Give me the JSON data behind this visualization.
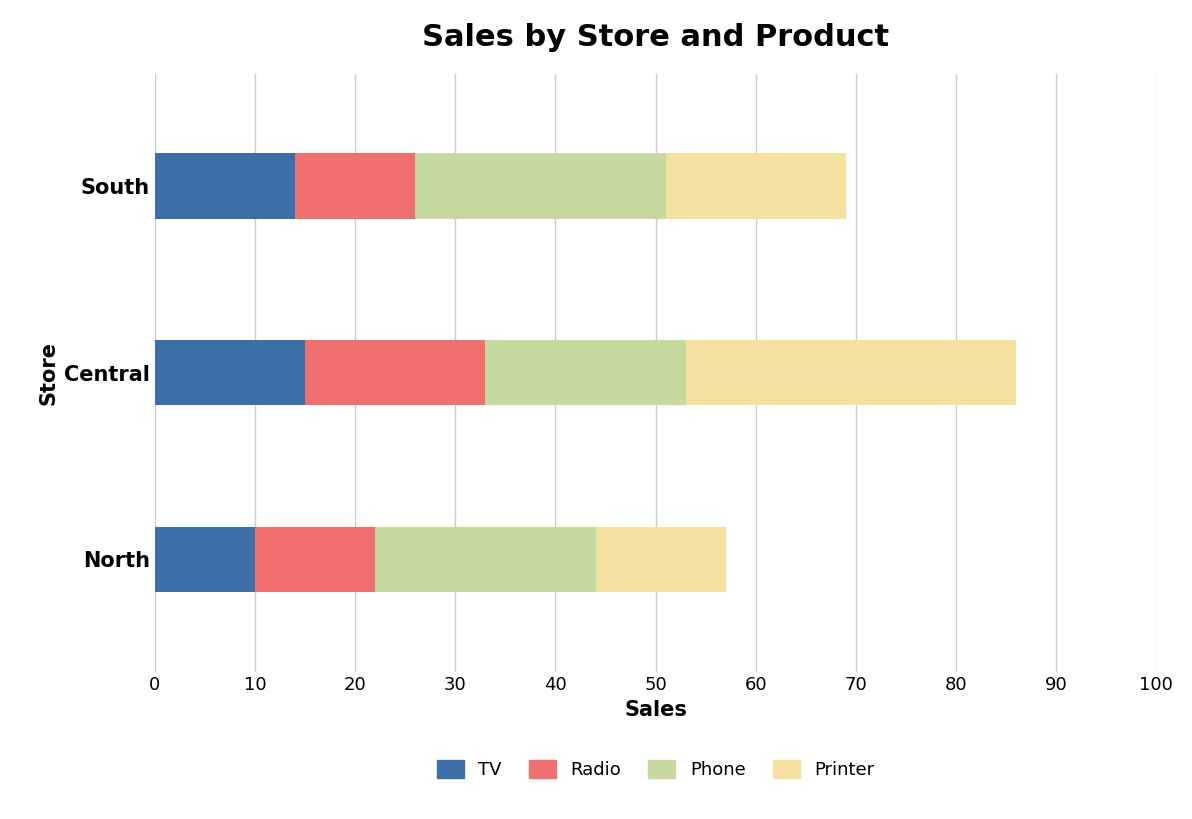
{
  "stores": [
    "North",
    "Central",
    "South"
  ],
  "products": [
    "TV",
    "Radio",
    "Phone",
    "Printer"
  ],
  "values": {
    "TV": [
      10,
      15,
      14
    ],
    "Radio": [
      12,
      18,
      12
    ],
    "Phone": [
      22,
      20,
      25
    ],
    "Printer": [
      13,
      33,
      18
    ]
  },
  "colors": {
    "TV": "#3d6ea8",
    "Radio": "#f07070",
    "Phone": "#c5d9a0",
    "Printer": "#f5e0a0"
  },
  "title": "Sales by Store and Product",
  "xlabel": "Sales",
  "ylabel": "Store",
  "xlim": [
    0,
    100
  ],
  "xticks": [
    0,
    10,
    20,
    30,
    40,
    50,
    60,
    70,
    80,
    90,
    100
  ],
  "title_fontsize": 22,
  "label_fontsize": 15,
  "tick_fontsize": 13,
  "legend_fontsize": 13,
  "bar_height": 0.35,
  "background_color": "#ffffff",
  "grid_color": "#cccccc"
}
